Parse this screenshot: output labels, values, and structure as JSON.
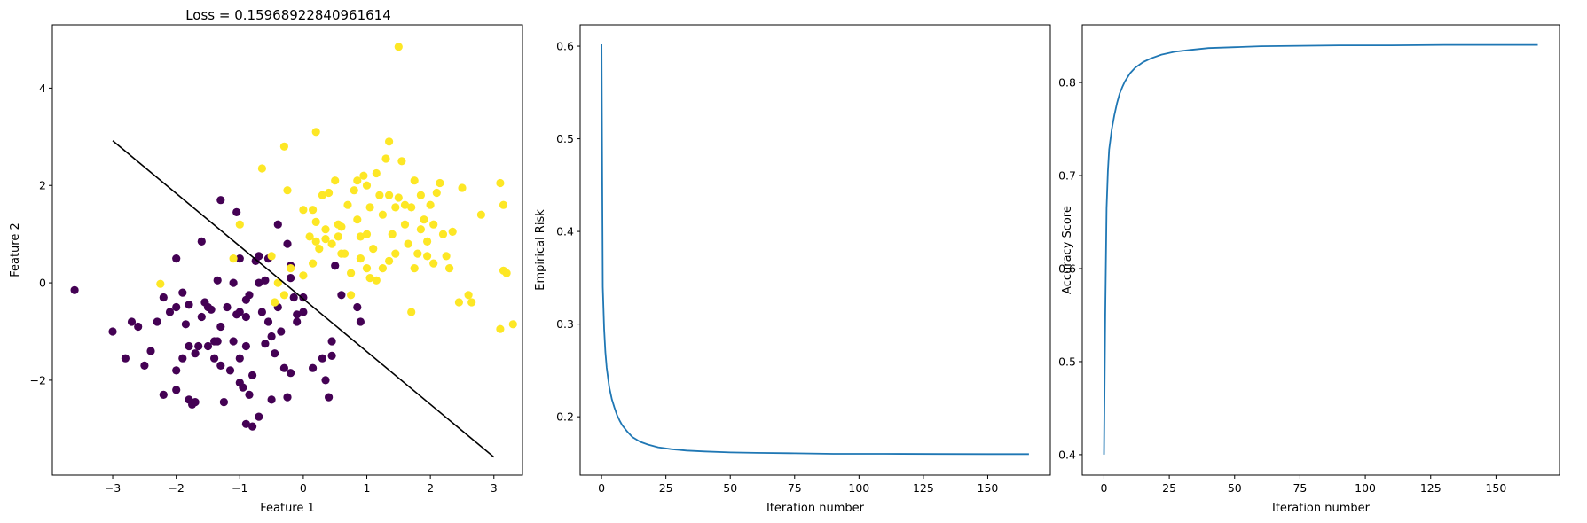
{
  "chart_data": [
    {
      "type": "scatter",
      "title": "Loss = 0.15968922840961614",
      "xlabel": "Feature 1",
      "ylabel": "Feature 2",
      "xlim": [
        -3.95,
        3.45
      ],
      "ylim": [
        -3.95,
        5.3
      ],
      "xticks": [
        -3,
        -2,
        -1,
        0,
        1,
        2,
        3
      ],
      "xtick_labels": [
        "−3",
        "−2",
        "−1",
        "0",
        "1",
        "2",
        "3"
      ],
      "yticks": [
        -2,
        0,
        2,
        4
      ],
      "ytick_labels": [
        "−2",
        "0",
        "2",
        "4"
      ],
      "grid": false,
      "colors": {
        "class_0": "#440154",
        "class_1": "#fde725",
        "line": "#000000"
      },
      "series": [
        {
          "class": 0,
          "points": [
            [
              -3.6,
              -0.15
            ],
            [
              -3.0,
              -1.0
            ],
            [
              -2.8,
              -1.55
            ],
            [
              -2.7,
              -0.8
            ],
            [
              -2.6,
              -0.9
            ],
            [
              -2.5,
              -1.7
            ],
            [
              -2.4,
              -1.4
            ],
            [
              -2.3,
              -0.8
            ],
            [
              -2.2,
              -2.3
            ],
            [
              -2.2,
              -0.3
            ],
            [
              -2.1,
              -0.6
            ],
            [
              -2.0,
              -0.5
            ],
            [
              -2.0,
              -1.8
            ],
            [
              -2.0,
              -2.2
            ],
            [
              -1.9,
              -1.55
            ],
            [
              -1.9,
              -0.2
            ],
            [
              -1.85,
              -0.85
            ],
            [
              -1.8,
              -2.4
            ],
            [
              -1.8,
              -1.3
            ],
            [
              -1.8,
              -0.45
            ],
            [
              -1.75,
              -2.5
            ],
            [
              -1.7,
              -1.45
            ],
            [
              -1.65,
              -1.3
            ],
            [
              -1.6,
              -0.7
            ],
            [
              -1.55,
              -0.4
            ],
            [
              -1.5,
              -1.3
            ],
            [
              -1.45,
              -0.55
            ],
            [
              -1.4,
              -1.2
            ],
            [
              -1.4,
              -1.55
            ],
            [
              -1.35,
              0.05
            ],
            [
              -1.3,
              -1.7
            ],
            [
              -1.3,
              -0.9
            ],
            [
              -1.25,
              -2.45
            ],
            [
              -1.2,
              -0.5
            ],
            [
              -1.15,
              -1.8
            ],
            [
              -1.1,
              -1.2
            ],
            [
              -1.05,
              -0.65
            ],
            [
              -1.0,
              -0.6
            ],
            [
              -1.0,
              -1.55
            ],
            [
              -0.95,
              -2.15
            ],
            [
              -0.9,
              -0.7
            ],
            [
              -0.9,
              -1.3
            ],
            [
              -0.85,
              -2.3
            ],
            [
              -0.8,
              -1.9
            ],
            [
              -0.75,
              0.45
            ],
            [
              -0.7,
              0.0
            ],
            [
              -0.65,
              -0.6
            ],
            [
              -0.6,
              -1.25
            ],
            [
              -0.55,
              -0.8
            ],
            [
              -0.5,
              -2.4
            ],
            [
              -0.45,
              -1.45
            ],
            [
              -0.4,
              -0.5
            ],
            [
              -0.35,
              -1.0
            ],
            [
              -0.3,
              -1.75
            ],
            [
              -0.25,
              -2.35
            ],
            [
              -0.2,
              -1.85
            ],
            [
              -0.15,
              -0.3
            ],
            [
              -0.1,
              -0.8
            ],
            [
              0.0,
              -0.3
            ],
            [
              0.0,
              -0.6
            ],
            [
              0.15,
              -1.75
            ],
            [
              0.3,
              -1.55
            ],
            [
              0.35,
              -2.0
            ],
            [
              0.4,
              -2.35
            ],
            [
              0.45,
              -1.2
            ],
            [
              0.45,
              -1.5
            ],
            [
              -1.3,
              1.7
            ],
            [
              -1.05,
              1.45
            ],
            [
              -1.0,
              0.5
            ],
            [
              -0.9,
              -0.35
            ],
            [
              -0.8,
              -2.95
            ],
            [
              -0.7,
              -2.75
            ],
            [
              -0.6,
              0.05
            ],
            [
              -0.55,
              0.5
            ],
            [
              -0.4,
              1.2
            ],
            [
              -0.25,
              0.8
            ],
            [
              -0.2,
              0.35
            ],
            [
              -0.2,
              0.1
            ],
            [
              -0.1,
              -0.65
            ],
            [
              -1.7,
              -2.45
            ],
            [
              -1.5,
              -0.5
            ],
            [
              -0.9,
              -2.9
            ],
            [
              -1.1,
              0.0
            ],
            [
              -0.85,
              -0.25
            ],
            [
              0.5,
              0.35
            ],
            [
              0.6,
              -0.25
            ],
            [
              0.85,
              -0.5
            ],
            [
              0.9,
              -0.8
            ],
            [
              -2.0,
              0.5
            ],
            [
              -1.6,
              0.85
            ],
            [
              -0.7,
              0.55
            ],
            [
              -1.0,
              -2.05
            ],
            [
              -1.35,
              -1.2
            ],
            [
              -0.5,
              -1.1
            ]
          ]
        },
        {
          "class": 1,
          "points": [
            [
              -2.25,
              -0.02
            ],
            [
              -1.1,
              0.5
            ],
            [
              -1.0,
              1.2
            ],
            [
              -0.65,
              2.35
            ],
            [
              -0.5,
              0.55
            ],
            [
              -0.45,
              -0.4
            ],
            [
              -0.4,
              0.0
            ],
            [
              -0.3,
              2.8
            ],
            [
              -0.25,
              1.9
            ],
            [
              -0.2,
              0.3
            ],
            [
              0.0,
              1.5
            ],
            [
              0.0,
              0.15
            ],
            [
              0.1,
              0.95
            ],
            [
              0.15,
              1.5
            ],
            [
              0.2,
              3.1
            ],
            [
              0.2,
              1.25
            ],
            [
              0.25,
              0.7
            ],
            [
              0.3,
              1.8
            ],
            [
              0.35,
              1.1
            ],
            [
              0.4,
              1.85
            ],
            [
              0.45,
              0.8
            ],
            [
              0.5,
              2.1
            ],
            [
              0.55,
              1.2
            ],
            [
              0.6,
              0.6
            ],
            [
              0.7,
              1.6
            ],
            [
              0.75,
              0.2
            ],
            [
              0.8,
              1.9
            ],
            [
              0.85,
              1.3
            ],
            [
              0.9,
              0.5
            ],
            [
              0.95,
              2.2
            ],
            [
              1.0,
              1.0
            ],
            [
              1.0,
              0.3
            ],
            [
              1.05,
              1.55
            ],
            [
              1.1,
              0.7
            ],
            [
              1.15,
              0.05
            ],
            [
              1.2,
              1.8
            ],
            [
              1.25,
              1.4
            ],
            [
              1.3,
              2.55
            ],
            [
              1.35,
              0.45
            ],
            [
              1.35,
              2.9
            ],
            [
              1.4,
              1.0
            ],
            [
              1.45,
              0.6
            ],
            [
              1.5,
              1.75
            ],
            [
              1.5,
              4.85
            ],
            [
              1.55,
              2.5
            ],
            [
              1.6,
              1.2
            ],
            [
              1.65,
              0.8
            ],
            [
              1.7,
              1.55
            ],
            [
              1.75,
              2.1
            ],
            [
              1.8,
              0.6
            ],
            [
              1.85,
              1.8
            ],
            [
              1.9,
              1.3
            ],
            [
              1.95,
              0.85
            ],
            [
              2.0,
              1.6
            ],
            [
              2.05,
              0.4
            ],
            [
              2.1,
              1.85
            ],
            [
              2.15,
              2.05
            ],
            [
              2.2,
              1.0
            ],
            [
              2.25,
              0.55
            ],
            [
              2.3,
              0.3
            ],
            [
              2.35,
              1.05
            ],
            [
              2.45,
              -0.4
            ],
            [
              2.5,
              1.95
            ],
            [
              2.6,
              -0.25
            ],
            [
              2.65,
              -0.4
            ],
            [
              2.8,
              1.4
            ],
            [
              3.1,
              -0.95
            ],
            [
              3.1,
              2.05
            ],
            [
              3.15,
              0.25
            ],
            [
              3.15,
              1.6
            ],
            [
              3.2,
              0.2
            ],
            [
              3.3,
              -0.85
            ],
            [
              1.7,
              -0.6
            ],
            [
              0.75,
              -0.25
            ],
            [
              -0.3,
              -0.25
            ],
            [
              0.15,
              0.4
            ],
            [
              0.35,
              0.9
            ],
            [
              0.6,
              1.15
            ],
            [
              0.9,
              0.95
            ],
            [
              1.05,
              0.1
            ],
            [
              1.25,
              0.3
            ],
            [
              1.45,
              1.55
            ],
            [
              1.6,
              1.6
            ],
            [
              1.85,
              1.1
            ],
            [
              2.05,
              1.2
            ],
            [
              1.0,
              2.0
            ],
            [
              0.85,
              2.1
            ],
            [
              1.35,
              1.8
            ],
            [
              0.2,
              0.85
            ],
            [
              0.55,
              0.95
            ],
            [
              1.75,
              0.3
            ],
            [
              1.15,
              2.25
            ],
            [
              1.95,
              0.55
            ],
            [
              0.65,
              0.6
            ]
          ]
        }
      ],
      "decision_line": [
        [
          -3.0,
          2.92
        ],
        [
          3.0,
          -3.58
        ]
      ]
    },
    {
      "type": "line",
      "title": "",
      "xlabel": "Iteration number",
      "ylabel": "Empirical Risk",
      "xlim": [
        -8.3,
        174.3
      ],
      "ylim": [
        0.137,
        0.623
      ],
      "xticks": [
        0,
        25,
        50,
        75,
        100,
        125,
        150
      ],
      "yticks": [
        0.2,
        0.3,
        0.4,
        0.5,
        0.6
      ],
      "grid": false,
      "color": "#1f77b4",
      "x": [
        0,
        0.5,
        1,
        1.5,
        2,
        3,
        4,
        5,
        6,
        7,
        8,
        10,
        12,
        15,
        18,
        22,
        27,
        33,
        40,
        50,
        60,
        75,
        90,
        110,
        130,
        150,
        166
      ],
      "y": [
        0.602,
        0.34,
        0.295,
        0.27,
        0.253,
        0.232,
        0.219,
        0.21,
        0.202,
        0.196,
        0.191,
        0.184,
        0.178,
        0.173,
        0.17,
        0.167,
        0.165,
        0.1635,
        0.1625,
        0.1615,
        0.161,
        0.1605,
        0.16,
        0.16,
        0.1598,
        0.1597,
        0.1597
      ]
    },
    {
      "type": "line",
      "title": "",
      "xlabel": "Iteration number",
      "ylabel": "Accuracy Score",
      "xlim": [
        -8.3,
        174.3
      ],
      "ylim": [
        0.378,
        0.862
      ],
      "xticks": [
        0,
        25,
        50,
        75,
        100,
        125,
        150
      ],
      "yticks": [
        0.4,
        0.5,
        0.6,
        0.7,
        0.8
      ],
      "grid": false,
      "color": "#1f77b4",
      "x": [
        0,
        0.5,
        1,
        1.5,
        2,
        3,
        4,
        5,
        6,
        7,
        8,
        10,
        12,
        15,
        18,
        22,
        27,
        33,
        40,
        50,
        60,
        75,
        90,
        110,
        130,
        150,
        166
      ],
      "y": [
        0.4,
        0.55,
        0.665,
        0.705,
        0.728,
        0.75,
        0.765,
        0.778,
        0.788,
        0.795,
        0.801,
        0.81,
        0.816,
        0.822,
        0.826,
        0.83,
        0.833,
        0.835,
        0.837,
        0.838,
        0.839,
        0.8395,
        0.84,
        0.84,
        0.8405,
        0.8405,
        0.8405
      ]
    }
  ]
}
